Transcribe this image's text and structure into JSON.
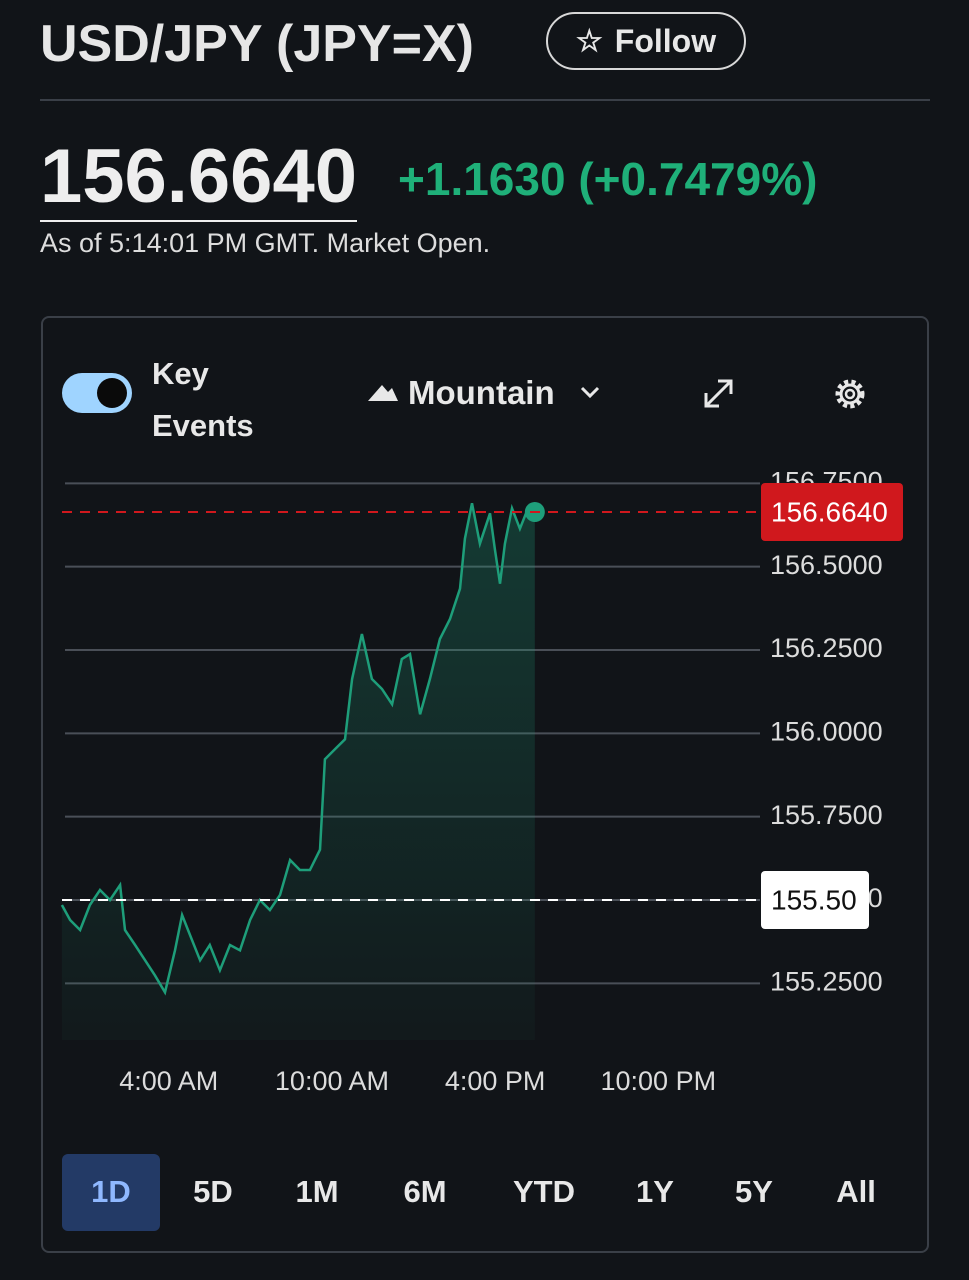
{
  "header": {
    "title": "USD/JPY (JPY=X)",
    "follow": "Follow",
    "price": "156.6640",
    "change": "+1.1630 (+0.7479%)",
    "timestamp": "As of 5:14:01 PM GMT. Market Open."
  },
  "controls": {
    "key_events": "Key Events",
    "chart_style": "Mountain"
  },
  "chart_data": {
    "type": "line",
    "color": "#1e9e7a",
    "x": [
      0.07,
      0.37,
      0.74,
      1.1,
      1.47,
      1.84,
      2.21,
      2.39,
      2.76,
      3.13,
      3.49,
      3.86,
      4.23,
      4.49,
      4.78,
      5.15,
      5.51,
      5.88,
      6.25,
      6.62,
      6.99,
      7.35,
      7.72,
      8.09,
      8.46,
      8.82,
      9.19,
      9.56,
      9.74,
      10.11,
      10.48,
      10.74,
      11.1,
      11.47,
      11.84,
      12.21,
      12.57,
      12.87,
      13.24,
      13.6,
      13.97,
      14.34,
      14.71,
      14.89,
      15.15,
      15.44,
      15.81,
      15.99,
      16.18,
      16.36,
      16.62,
      16.91,
      17.21,
      17.46
    ],
    "values": [
      155.485,
      155.44,
      155.41,
      155.485,
      155.53,
      155.5,
      155.545,
      155.41,
      155.365,
      155.319,
      155.274,
      155.223,
      155.349,
      155.455,
      155.395,
      155.319,
      155.365,
      155.289,
      155.365,
      155.349,
      155.44,
      155.5,
      155.47,
      155.515,
      155.62,
      155.59,
      155.59,
      155.651,
      155.922,
      155.952,
      155.982,
      156.163,
      156.298,
      156.163,
      156.133,
      156.087,
      156.223,
      156.238,
      156.057,
      156.163,
      156.283,
      156.343,
      156.434,
      156.584,
      156.69,
      156.569,
      156.66,
      156.554,
      156.449,
      156.569,
      156.675,
      156.614,
      156.675,
      156.664
    ],
    "xlim": [
      0,
      25.74
    ],
    "ylim": [
      155.08,
      156.79
    ],
    "xticks": [
      {
        "value": 4,
        "label": "4:00 AM"
      },
      {
        "value": 10,
        "label": "10:00 AM"
      },
      {
        "value": 16,
        "label": "4:00 PM"
      },
      {
        "value": 22,
        "label": "10:00 PM"
      }
    ],
    "yticks": [
      {
        "value": 155.25,
        "label": "155.2500"
      },
      {
        "value": 155.5,
        "label": "155.5000"
      },
      {
        "value": 155.75,
        "label": "155.7500"
      },
      {
        "value": 156,
        "label": "156.0000"
      },
      {
        "value": 156.25,
        "label": "156.2500"
      },
      {
        "value": 156.5,
        "label": "156.5000"
      },
      {
        "value": 156.75,
        "label": "156.7500"
      }
    ],
    "grid": true,
    "reference_lines": [
      {
        "value": 155.5,
        "label": "155.50",
        "color": "#ffffff"
      },
      {
        "value": 156.664,
        "label": "156.6640",
        "color": "#d0181d"
      }
    ]
  },
  "ranges": [
    "1D",
    "5D",
    "1M",
    "6M",
    "YTD",
    "1Y",
    "5Y",
    "All"
  ],
  "selected_range": "1D"
}
